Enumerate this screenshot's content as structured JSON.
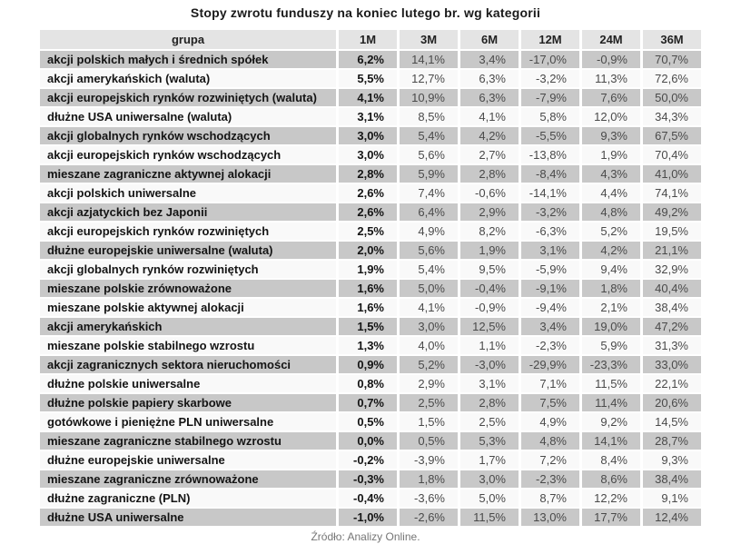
{
  "title": "Stopy zwrotu funduszy na koniec lutego br. wg kategorii",
  "source": "Źródło: Analizy Online.",
  "colors": {
    "header_bg": "#e4e4e4",
    "odd_row_bg": "#c8c8c8",
    "even_row_bg": "#f9f9f9",
    "group_text": "#141414",
    "value_text": "#4a4a4a"
  },
  "chart_data": {
    "type": "table",
    "title": "Stopy zwrotu funduszy na koniec lutego br. wg kategorii",
    "columns": [
      "grupa",
      "1M",
      "3M",
      "6M",
      "12M",
      "24M",
      "36M"
    ],
    "rows": [
      {
        "group": "akcji polskich małych i średnich spółek",
        "values": [
          "6,2%",
          "14,1%",
          "3,4%",
          "-17,0%",
          "-0,9%",
          "70,7%"
        ]
      },
      {
        "group": "akcji amerykańskich (waluta)",
        "values": [
          "5,5%",
          "12,7%",
          "6,3%",
          "-3,2%",
          "11,3%",
          "72,6%"
        ]
      },
      {
        "group": "akcji europejskich rynków rozwiniętych (waluta)",
        "values": [
          "4,1%",
          "10,9%",
          "6,3%",
          "-7,9%",
          "7,6%",
          "50,0%"
        ]
      },
      {
        "group": "dłużne USA uniwersalne (waluta)",
        "values": [
          "3,1%",
          "8,5%",
          "4,1%",
          "5,8%",
          "12,0%",
          "34,3%"
        ]
      },
      {
        "group": "akcji globalnych rynków wschodzących",
        "values": [
          "3,0%",
          "5,4%",
          "4,2%",
          "-5,5%",
          "9,3%",
          "67,5%"
        ]
      },
      {
        "group": "akcji europejskich rynków wschodzących",
        "values": [
          "3,0%",
          "5,6%",
          "2,7%",
          "-13,8%",
          "1,9%",
          "70,4%"
        ]
      },
      {
        "group": "mieszane zagraniczne aktywnej alokacji",
        "values": [
          "2,8%",
          "5,9%",
          "2,8%",
          "-8,4%",
          "4,3%",
          "41,0%"
        ]
      },
      {
        "group": "akcji polskich uniwersalne",
        "values": [
          "2,6%",
          "7,4%",
          "-0,6%",
          "-14,1%",
          "4,4%",
          "74,1%"
        ]
      },
      {
        "group": "akcji azjatyckich bez Japonii",
        "values": [
          "2,6%",
          "6,4%",
          "2,9%",
          "-3,2%",
          "4,8%",
          "49,2%"
        ]
      },
      {
        "group": "akcji europejskich rynków rozwiniętych",
        "values": [
          "2,5%",
          "4,9%",
          "8,2%",
          "-6,3%",
          "5,2%",
          "19,5%"
        ]
      },
      {
        "group": "dłużne europejskie uniwersalne (waluta)",
        "values": [
          "2,0%",
          "5,6%",
          "1,9%",
          "3,1%",
          "4,2%",
          "21,1%"
        ]
      },
      {
        "group": "akcji globalnych rynków rozwiniętych",
        "values": [
          "1,9%",
          "5,4%",
          "9,5%",
          "-5,9%",
          "9,4%",
          "32,9%"
        ]
      },
      {
        "group": "mieszane polskie zrównoważone",
        "values": [
          "1,6%",
          "5,0%",
          "-0,4%",
          "-9,1%",
          "1,8%",
          "40,4%"
        ]
      },
      {
        "group": "mieszane polskie aktywnej alokacji",
        "values": [
          "1,6%",
          "4,1%",
          "-0,9%",
          "-9,4%",
          "2,1%",
          "38,4%"
        ]
      },
      {
        "group": "akcji amerykańskich",
        "values": [
          "1,5%",
          "3,0%",
          "12,5%",
          "3,4%",
          "19,0%",
          "47,2%"
        ]
      },
      {
        "group": "mieszane polskie stabilnego wzrostu",
        "values": [
          "1,3%",
          "4,0%",
          "1,1%",
          "-2,3%",
          "5,9%",
          "31,3%"
        ]
      },
      {
        "group": "akcji zagranicznych sektora nieruchomości",
        "values": [
          "0,9%",
          "5,2%",
          "-3,0%",
          "-29,9%",
          "-23,3%",
          "33,0%"
        ]
      },
      {
        "group": "dłużne polskie uniwersalne",
        "values": [
          "0,8%",
          "2,9%",
          "3,1%",
          "7,1%",
          "11,5%",
          "22,1%"
        ]
      },
      {
        "group": "dłużne polskie papiery skarbowe",
        "values": [
          "0,7%",
          "2,5%",
          "2,8%",
          "7,5%",
          "11,4%",
          "20,6%"
        ]
      },
      {
        "group": "gotówkowe i pieniężne PLN uniwersalne",
        "values": [
          "0,5%",
          "1,5%",
          "2,5%",
          "4,9%",
          "9,2%",
          "14,5%"
        ]
      },
      {
        "group": "mieszane zagraniczne stabilnego wzrostu",
        "values": [
          "0,0%",
          "0,5%",
          "5,3%",
          "4,8%",
          "14,1%",
          "28,7%"
        ]
      },
      {
        "group": "dłużne europejskie uniwersalne",
        "values": [
          "-0,2%",
          "-3,9%",
          "1,7%",
          "7,2%",
          "8,4%",
          "9,3%"
        ]
      },
      {
        "group": "mieszane zagraniczne zrównoważone",
        "values": [
          "-0,3%",
          "1,8%",
          "3,0%",
          "-2,3%",
          "8,6%",
          "38,4%"
        ]
      },
      {
        "group": "dłużne zagraniczne (PLN)",
        "values": [
          "-0,4%",
          "-3,6%",
          "5,0%",
          "8,7%",
          "12,2%",
          "9,1%"
        ]
      },
      {
        "group": "dłużne USA uniwersalne",
        "values": [
          "-1,0%",
          "-2,6%",
          "11,5%",
          "13,0%",
          "17,7%",
          "12,4%"
        ]
      }
    ]
  }
}
